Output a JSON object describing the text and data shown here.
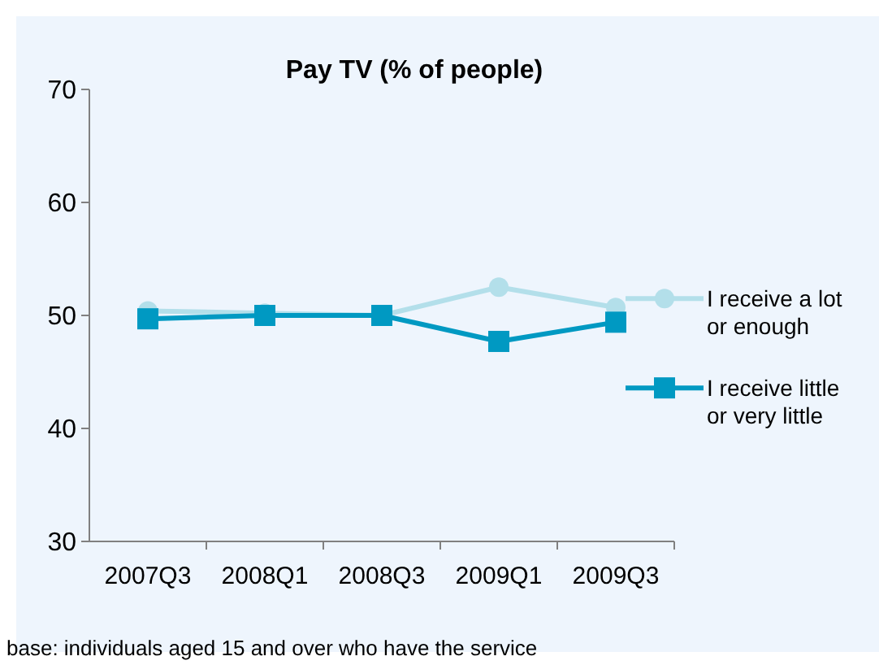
{
  "chart_data": {
    "type": "line",
    "title": "Pay TV (% of people)",
    "categories": [
      "2007Q3",
      "2008Q1",
      "2008Q3",
      "2009Q1",
      "2009Q3"
    ],
    "series": [
      {
        "name": "I receive a lot or enough",
        "color": "#b3dfea",
        "values": [
          50.4,
          50.2,
          50.0,
          52.5,
          50.7
        ],
        "marker": "circle"
      },
      {
        "name": "I receive little or very little",
        "color": "#0099c2",
        "values": [
          49.7,
          50.0,
          50.0,
          47.7,
          49.4
        ],
        "marker": "square"
      }
    ],
    "ylim": [
      30,
      70
    ],
    "yticks": [
      30,
      40,
      50,
      60,
      70
    ],
    "grid": false,
    "legend": "right",
    "line_style": "solid",
    "annotations": [
      "base: individuals aged 15 and over who have the service"
    ]
  }
}
